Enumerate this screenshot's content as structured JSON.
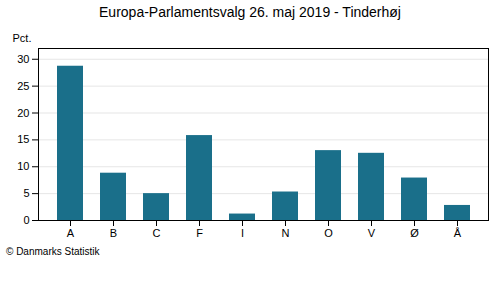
{
  "chart_data": {
    "type": "bar",
    "title": "Europa-Parlamentsvalg 26. maj 2019 - Tinderhøj",
    "ylabel": "Pct.",
    "caption": "© Danmarks Statistik",
    "categories": [
      "A",
      "B",
      "C",
      "F",
      "I",
      "N",
      "O",
      "V",
      "Ø",
      "Å"
    ],
    "values": [
      28.7,
      8.8,
      5.0,
      15.8,
      1.2,
      5.3,
      13.0,
      12.5,
      7.9,
      2.8
    ],
    "color": "#1a6f8a",
    "ylim": [
      0,
      32
    ],
    "yticks": [
      0,
      5,
      10,
      15,
      20,
      25,
      30
    ],
    "grid": true
  }
}
